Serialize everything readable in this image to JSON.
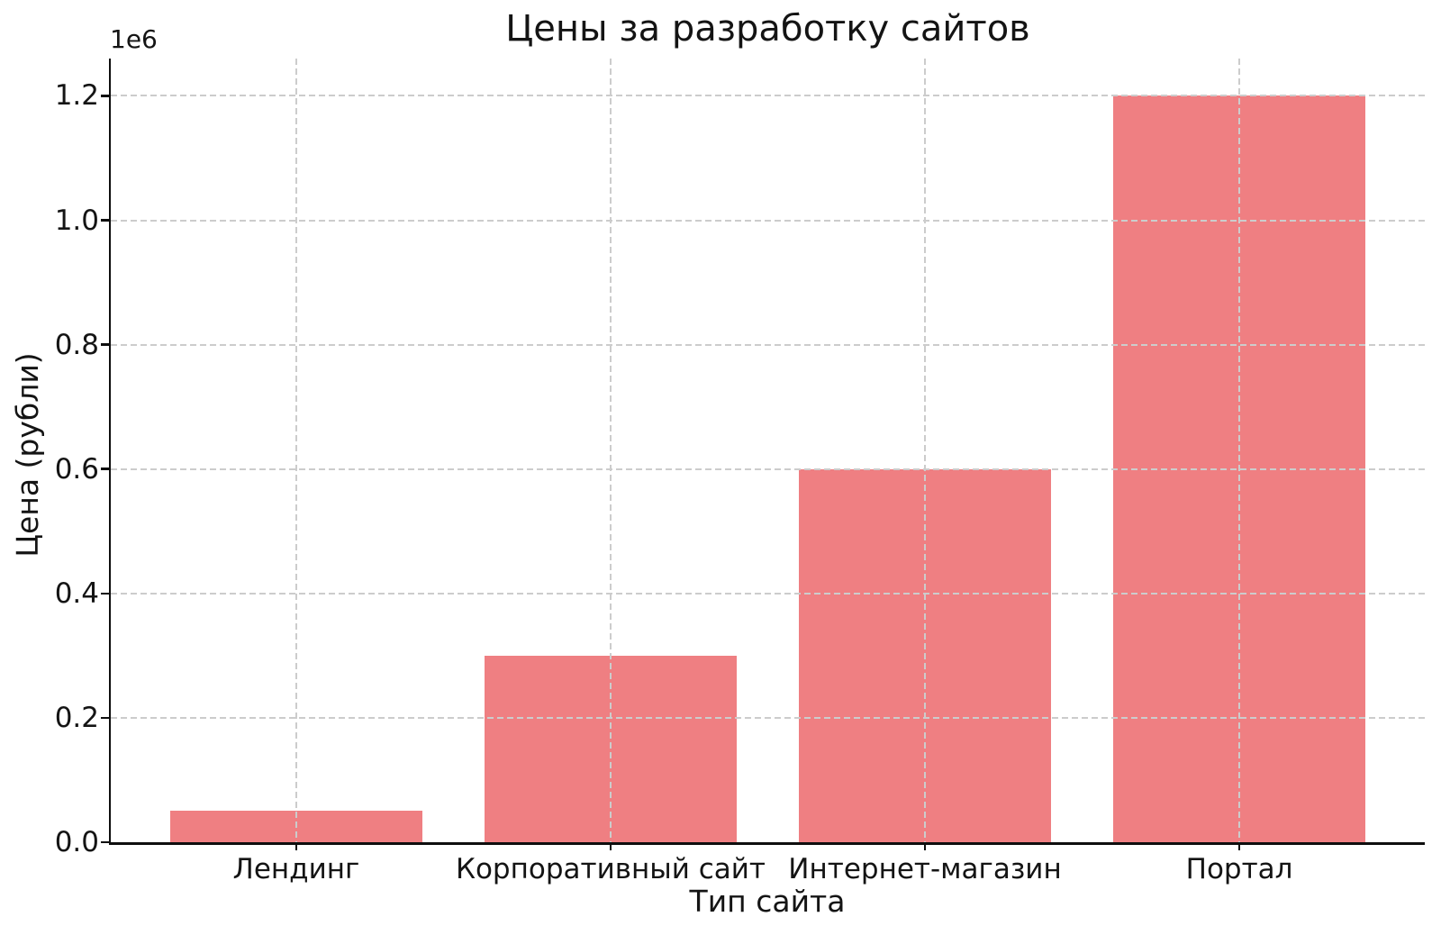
{
  "figure": {
    "title": "Цены за разработку сайтов",
    "xlabel": "Тип сайта",
    "ylabel": "Цена (рубли)",
    "y_offset_label": "1e6"
  },
  "chart_data": {
    "type": "bar",
    "title": "Цены за разработку сайтов",
    "xlabel": "Тип сайта",
    "ylabel": "Цена (рубли)",
    "categories": [
      "Лендинг",
      "Корпоративный сайт",
      "Интернет-магазин",
      "Портал"
    ],
    "values": [
      50000,
      300000,
      600000,
      1200000
    ],
    "ylim": [
      0,
      1260000
    ],
    "yticks": [
      0,
      200000,
      400000,
      600000,
      800000,
      1000000,
      1200000
    ],
    "ytick_labels": [
      "0.0",
      "0.2",
      "0.4",
      "0.6",
      "0.8",
      "1.0",
      "1.2"
    ],
    "y_offset_label": "1e6",
    "bar_color": "#ef7f82",
    "grid_color": "#cccccc",
    "grid": true,
    "grid_style": "dashed",
    "legend": "none"
  }
}
